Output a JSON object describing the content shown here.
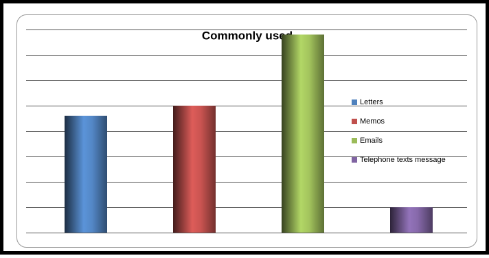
{
  "chart_data": {
    "type": "bar",
    "title": "Commonly used",
    "categories": [
      "Letters",
      "Memos",
      "Emails",
      "Telephone texts message"
    ],
    "values": [
      4.6,
      5,
      7.8,
      1
    ],
    "colors": [
      "#4f81bd",
      "#c0504d",
      "#9bbb59",
      "#8064a2"
    ],
    "ylim": [
      0,
      8
    ],
    "yticks": [
      0,
      1,
      2,
      3,
      4,
      5,
      6,
      7,
      8
    ],
    "grid": true,
    "show_tick_labels": false,
    "legend": "right"
  }
}
